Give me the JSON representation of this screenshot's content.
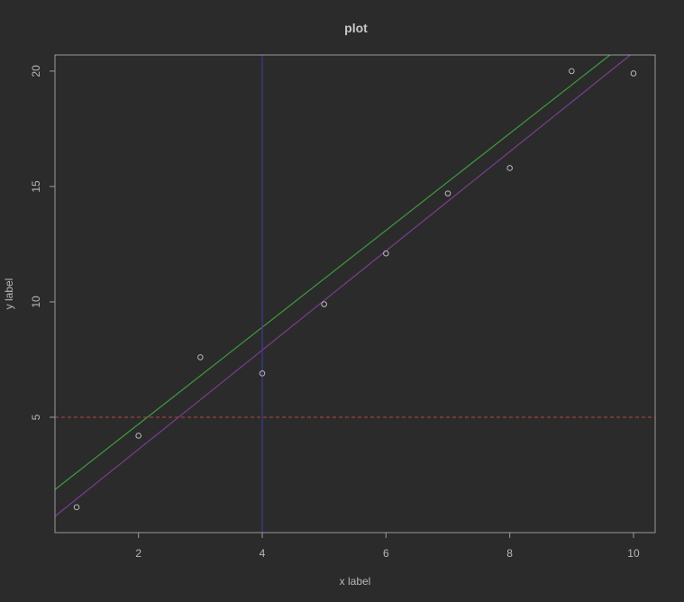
{
  "chart_data": {
    "type": "scatter",
    "title": "plot",
    "xlabel": "x label",
    "ylabel": "y label",
    "xlim": [
      0.65,
      10.35
    ],
    "ylim": [
      0.0,
      20.7
    ],
    "x_ticks": [
      2,
      4,
      6,
      8,
      10
    ],
    "y_ticks": [
      5,
      10,
      15,
      20
    ],
    "grid": false,
    "background": "#2b2b2b",
    "points": {
      "x": [
        1,
        2,
        3,
        4,
        5,
        6,
        7,
        8,
        9,
        10
      ],
      "y": [
        1.1,
        4.2,
        7.6,
        6.9,
        9.9,
        12.1,
        14.7,
        15.8,
        20.0,
        19.9
      ],
      "color": "#b8b8b8"
    },
    "lines": [
      {
        "kind": "abline",
        "intercept": 0.5,
        "slope": 2.1,
        "color": "#3e9a3e"
      },
      {
        "kind": "abline",
        "intercept": -0.69,
        "slope": 2.15,
        "color": "#7a3d8f"
      },
      {
        "kind": "vline",
        "x": 4,
        "color": "#3a3aa0"
      },
      {
        "kind": "hline",
        "y": 5,
        "color": "#9a4040",
        "dashed": true
      }
    ]
  }
}
